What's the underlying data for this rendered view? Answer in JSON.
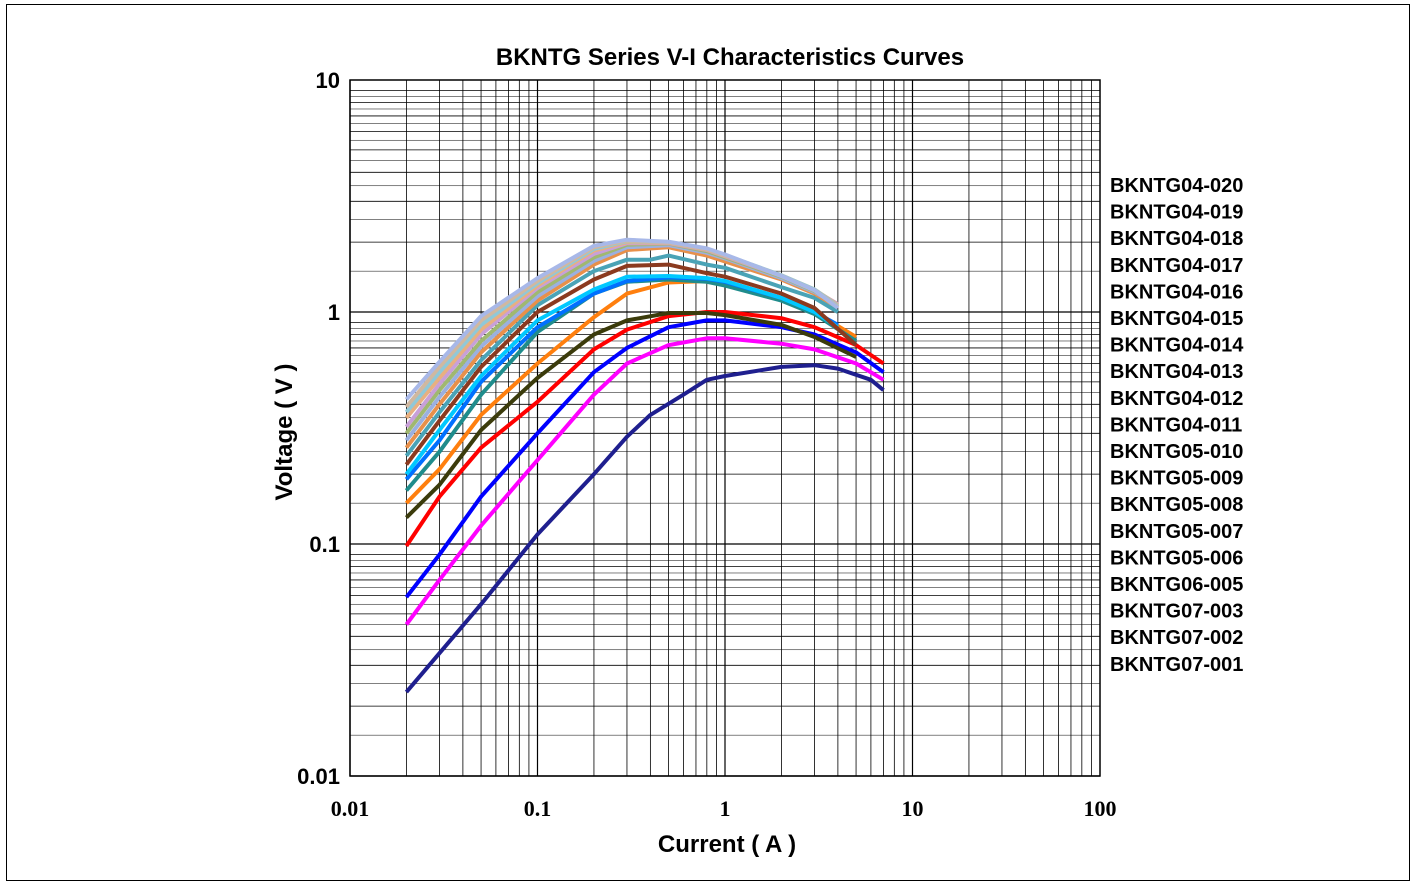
{
  "chart_data": {
    "type": "line",
    "title": "BKNTG  Series  V-I  Characteristics  Curves",
    "xlabel": "Current ( A )",
    "ylabel": "Voltage ( V )",
    "xscale": "log",
    "yscale": "log",
    "xlim": [
      0.01,
      100
    ],
    "ylim": [
      0.01,
      10
    ],
    "xticks": [
      "0.01",
      "0.1",
      "1",
      "10",
      "100"
    ],
    "yticks": [
      "10",
      "1",
      "0.1",
      "0.01"
    ],
    "grid": true,
    "legend_position": "right",
    "legend": [
      "BKNTG04-020",
      "BKNTG04-019",
      "BKNTG04-018",
      "BKNTG04-017",
      "BKNTG04-016",
      "BKNTG04-015",
      "BKNTG04-014",
      "BKNTG04-013",
      "BKNTG04-012",
      "BKNTG04-011",
      "BKNTG05-010",
      "BKNTG05-009",
      "BKNTG05-008",
      "BKNTG05-007",
      "BKNTG05-006",
      "BKNTG06-005",
      "BKNTG07-003",
      "BKNTG07-002",
      "BKNTG07-001"
    ],
    "series": [
      {
        "color": "#1F1F8F",
        "points": [
          [
            0.02,
            0.023
          ],
          [
            0.05,
            0.055
          ],
          [
            0.1,
            0.11
          ],
          [
            0.2,
            0.2
          ],
          [
            0.3,
            0.29
          ],
          [
            0.4,
            0.36
          ],
          [
            0.6,
            0.44
          ],
          [
            0.8,
            0.51
          ],
          [
            1,
            0.53
          ],
          [
            2,
            0.58
          ],
          [
            3,
            0.59
          ],
          [
            4,
            0.57
          ],
          [
            6,
            0.51
          ],
          [
            7,
            0.46
          ]
        ]
      },
      {
        "color": "#FF00FF",
        "points": [
          [
            0.02,
            0.045
          ],
          [
            0.03,
            0.07
          ],
          [
            0.05,
            0.12
          ],
          [
            0.1,
            0.23
          ],
          [
            0.2,
            0.44
          ],
          [
            0.3,
            0.6
          ],
          [
            0.5,
            0.72
          ],
          [
            0.8,
            0.77
          ],
          [
            1,
            0.77
          ],
          [
            2,
            0.73
          ],
          [
            3,
            0.69
          ],
          [
            5,
            0.6
          ],
          [
            7,
            0.51
          ]
        ]
      },
      {
        "color": "#0000FF",
        "points": [
          [
            0.02,
            0.059
          ],
          [
            0.03,
            0.09
          ],
          [
            0.05,
            0.16
          ],
          [
            0.1,
            0.3
          ],
          [
            0.2,
            0.55
          ],
          [
            0.3,
            0.7
          ],
          [
            0.5,
            0.86
          ],
          [
            0.8,
            0.92
          ],
          [
            1,
            0.92
          ],
          [
            2,
            0.86
          ],
          [
            3,
            0.8
          ],
          [
            5,
            0.67
          ],
          [
            7,
            0.55
          ]
        ]
      },
      {
        "color": "#FF0000",
        "points": [
          [
            0.02,
            0.098
          ],
          [
            0.03,
            0.16
          ],
          [
            0.05,
            0.26
          ],
          [
            0.1,
            0.41
          ],
          [
            0.2,
            0.69
          ],
          [
            0.3,
            0.84
          ],
          [
            0.5,
            0.96
          ],
          [
            0.8,
            1.0
          ],
          [
            1,
            1.0
          ],
          [
            2,
            0.94
          ],
          [
            3,
            0.86
          ],
          [
            5,
            0.72
          ],
          [
            7,
            0.6
          ]
        ]
      },
      {
        "color": "#3B3B0B",
        "points": [
          [
            0.02,
            0.13
          ],
          [
            0.03,
            0.18
          ],
          [
            0.05,
            0.31
          ],
          [
            0.1,
            0.52
          ],
          [
            0.2,
            0.8
          ],
          [
            0.3,
            0.92
          ],
          [
            0.5,
            0.99
          ],
          [
            0.8,
            0.99
          ],
          [
            1,
            0.97
          ],
          [
            2,
            0.88
          ],
          [
            3,
            0.78
          ],
          [
            5,
            0.64
          ]
        ]
      },
      {
        "color": "#FF7F0E",
        "points": [
          [
            0.02,
            0.15
          ],
          [
            0.03,
            0.21
          ],
          [
            0.05,
            0.36
          ],
          [
            0.1,
            0.6
          ],
          [
            0.2,
            0.95
          ],
          [
            0.3,
            1.2
          ],
          [
            0.5,
            1.34
          ],
          [
            0.8,
            1.36
          ],
          [
            1,
            1.33
          ],
          [
            2,
            1.15
          ],
          [
            3,
            1.0
          ],
          [
            5,
            0.78
          ]
        ]
      },
      {
        "color": "#1F8C8C",
        "points": [
          [
            0.02,
            0.17
          ],
          [
            0.03,
            0.25
          ],
          [
            0.05,
            0.44
          ],
          [
            0.1,
            0.82
          ],
          [
            0.2,
            1.2
          ],
          [
            0.3,
            1.35
          ],
          [
            0.5,
            1.38
          ],
          [
            0.8,
            1.35
          ],
          [
            1,
            1.3
          ],
          [
            2,
            1.12
          ],
          [
            3,
            0.98
          ],
          [
            5,
            0.75
          ]
        ]
      },
      {
        "color": "#0070FF",
        "points": [
          [
            0.02,
            0.19
          ],
          [
            0.03,
            0.28
          ],
          [
            0.05,
            0.5
          ],
          [
            0.1,
            0.86
          ],
          [
            0.2,
            1.2
          ],
          [
            0.3,
            1.36
          ],
          [
            0.5,
            1.41
          ],
          [
            0.8,
            1.39
          ],
          [
            1,
            1.35
          ],
          [
            2,
            1.15
          ],
          [
            3,
            1.0
          ],
          [
            4,
            0.88
          ]
        ]
      },
      {
        "color": "#00C8FF",
        "points": [
          [
            0.02,
            0.2
          ],
          [
            0.03,
            0.31
          ],
          [
            0.05,
            0.53
          ],
          [
            0.1,
            0.92
          ],
          [
            0.2,
            1.25
          ],
          [
            0.3,
            1.42
          ],
          [
            0.5,
            1.43
          ],
          [
            0.8,
            1.4
          ],
          [
            1,
            1.36
          ],
          [
            2,
            1.15
          ],
          [
            3,
            1.0
          ],
          [
            4,
            0.86
          ]
        ]
      },
      {
        "color": "#8B3A1F",
        "points": [
          [
            0.02,
            0.22
          ],
          [
            0.03,
            0.34
          ],
          [
            0.05,
            0.58
          ],
          [
            0.1,
            1.0
          ],
          [
            0.2,
            1.38
          ],
          [
            0.3,
            1.58
          ],
          [
            0.5,
            1.6
          ],
          [
            0.8,
            1.47
          ],
          [
            1,
            1.42
          ],
          [
            2,
            1.2
          ],
          [
            3,
            1.04
          ],
          [
            5,
            0.72
          ]
        ]
      },
      {
        "color": "#4AA3B6",
        "points": [
          [
            0.02,
            0.24
          ],
          [
            0.03,
            0.37
          ],
          [
            0.05,
            0.62
          ],
          [
            0.1,
            1.07
          ],
          [
            0.2,
            1.5
          ],
          [
            0.3,
            1.68
          ],
          [
            0.4,
            1.68
          ],
          [
            0.5,
            1.75
          ],
          [
            0.8,
            1.6
          ],
          [
            1,
            1.55
          ],
          [
            2,
            1.28
          ],
          [
            3,
            1.15
          ],
          [
            4,
            1.0
          ]
        ]
      },
      {
        "color": "#E8904A",
        "points": [
          [
            0.02,
            0.26
          ],
          [
            0.03,
            0.4
          ],
          [
            0.05,
            0.67
          ],
          [
            0.1,
            1.12
          ],
          [
            0.2,
            1.6
          ],
          [
            0.3,
            1.85
          ],
          [
            0.5,
            1.9
          ],
          [
            0.8,
            1.75
          ],
          [
            1,
            1.65
          ],
          [
            2,
            1.38
          ],
          [
            3,
            1.2
          ],
          [
            4,
            1.05
          ]
        ]
      },
      {
        "color": "#9BB0E0",
        "points": [
          [
            0.02,
            0.28
          ],
          [
            0.03,
            0.43
          ],
          [
            0.05,
            0.71
          ],
          [
            0.1,
            1.17
          ],
          [
            0.2,
            1.66
          ],
          [
            0.3,
            1.9
          ],
          [
            0.5,
            1.94
          ],
          [
            0.8,
            1.8
          ],
          [
            1,
            1.7
          ],
          [
            2,
            1.4
          ],
          [
            3,
            1.22
          ],
          [
            4,
            1.07
          ]
        ]
      },
      {
        "color": "#A0B870",
        "points": [
          [
            0.02,
            0.3
          ],
          [
            0.03,
            0.46
          ],
          [
            0.05,
            0.75
          ],
          [
            0.1,
            1.22
          ],
          [
            0.2,
            1.72
          ],
          [
            0.3,
            1.95
          ],
          [
            0.5,
            1.97
          ],
          [
            0.8,
            1.83
          ],
          [
            1,
            1.72
          ],
          [
            2,
            1.42
          ],
          [
            3,
            1.23
          ],
          [
            4,
            1.08
          ]
        ]
      },
      {
        "color": "#C8A0D8",
        "points": [
          [
            0.02,
            0.32
          ],
          [
            0.03,
            0.49
          ],
          [
            0.05,
            0.8
          ],
          [
            0.1,
            1.27
          ],
          [
            0.2,
            1.78
          ],
          [
            0.3,
            1.98
          ],
          [
            0.5,
            1.98
          ],
          [
            0.8,
            1.85
          ],
          [
            1,
            1.74
          ],
          [
            2,
            1.43
          ],
          [
            3,
            1.24
          ],
          [
            4,
            1.08
          ]
        ]
      },
      {
        "color": "#E8B080",
        "points": [
          [
            0.02,
            0.35
          ],
          [
            0.03,
            0.52
          ],
          [
            0.05,
            0.84
          ],
          [
            0.1,
            1.3
          ],
          [
            0.2,
            1.84
          ],
          [
            0.3,
            2.0
          ],
          [
            0.5,
            1.99
          ],
          [
            0.8,
            1.86
          ],
          [
            1,
            1.75
          ],
          [
            2,
            1.44
          ],
          [
            3,
            1.25
          ],
          [
            4,
            1.07
          ]
        ]
      },
      {
        "color": "#90C8D8",
        "points": [
          [
            0.02,
            0.37
          ],
          [
            0.03,
            0.55
          ],
          [
            0.05,
            0.88
          ],
          [
            0.1,
            1.33
          ],
          [
            0.2,
            1.87
          ],
          [
            0.3,
            2.02
          ],
          [
            0.5,
            2.0
          ],
          [
            0.8,
            1.87
          ],
          [
            1,
            1.76
          ],
          [
            2,
            1.44
          ],
          [
            3,
            1.25
          ],
          [
            4,
            1.06
          ]
        ]
      },
      {
        "color": "#D0B8A0",
        "points": [
          [
            0.02,
            0.39
          ],
          [
            0.03,
            0.58
          ],
          [
            0.05,
            0.92
          ],
          [
            0.1,
            1.36
          ],
          [
            0.2,
            1.9
          ],
          [
            0.3,
            2.03
          ],
          [
            0.5,
            2.0
          ],
          [
            0.8,
            1.87
          ],
          [
            1,
            1.76
          ],
          [
            2,
            1.43
          ],
          [
            3,
            1.24
          ],
          [
            4,
            1.05
          ]
        ]
      },
      {
        "color": "#A8B8E8",
        "points": [
          [
            0.02,
            0.42
          ],
          [
            0.03,
            0.61
          ],
          [
            0.05,
            0.96
          ],
          [
            0.1,
            1.4
          ],
          [
            0.2,
            1.93
          ],
          [
            0.3,
            2.05
          ],
          [
            0.5,
            2.01
          ],
          [
            0.8,
            1.88
          ],
          [
            1,
            1.77
          ],
          [
            2,
            1.43
          ],
          [
            3,
            1.24
          ],
          [
            4,
            1.04
          ]
        ]
      }
    ]
  }
}
